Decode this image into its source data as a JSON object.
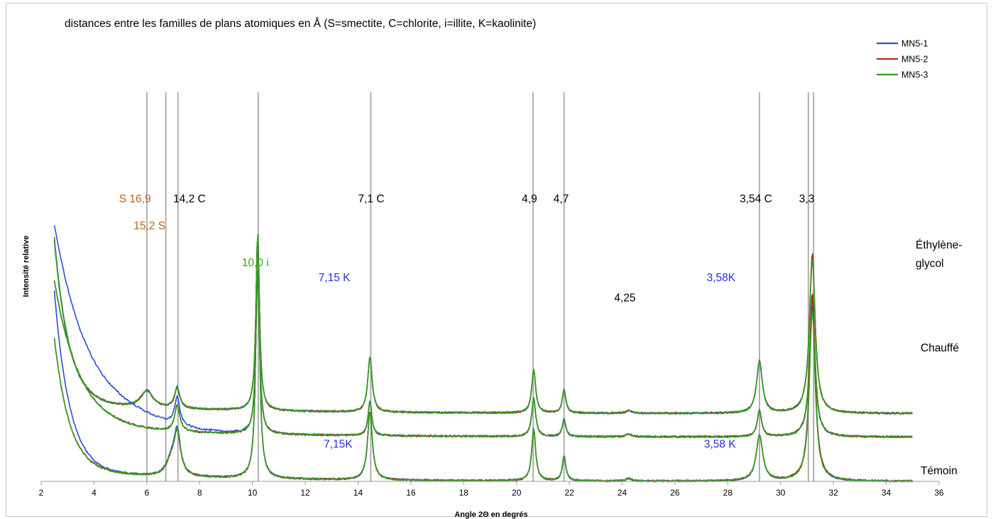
{
  "chart_data": {
    "type": "line",
    "title": "distances entre les familles de plans atomiques en Å (S=smectite, C=chlorite, i=illite, K=kaolinite)",
    "xlabel": "Angle 2Θ en degrés",
    "ylabel": "Intensité relative",
    "xlim": [
      2,
      36
    ],
    "x_ticks": [
      "2",
      "4",
      "6",
      "8",
      "10",
      "12",
      "14",
      "16",
      "18",
      "20",
      "22",
      "24",
      "26",
      "28",
      "30",
      "32",
      "34",
      "36"
    ],
    "legend": {
      "placement": "top-right",
      "entries": [
        {
          "name": "MN5-1",
          "color": "#2a4ed8"
        },
        {
          "name": "MN5-2",
          "color": "#b02a20"
        },
        {
          "name": "MN5-3",
          "color": "#2fa022"
        }
      ]
    },
    "groups": [
      {
        "label": "Éthylène-\nglycol",
        "label_lines": [
          "Éthylène-",
          "glycol"
        ],
        "baseline": 0.52,
        "dc": 1.27,
        "da": 1.75,
        "tau": 0.55
      },
      {
        "label": "Chauffé",
        "label_lines": [
          "Chauffé"
        ],
        "baseline": 0.34,
        "dc": 1.12,
        "da": 1.55,
        "tau": 0.95
      },
      {
        "label": "Témoin",
        "label_lines": [
          "Témoin"
        ],
        "baseline": 0.0,
        "dc": 1.02,
        "da": 1.38,
        "tau": 0.58
      }
    ],
    "peaks": [
      {
        "group": 0,
        "x": 6.0,
        "h": 0.13,
        "w": 0.28
      },
      {
        "group": 0,
        "x": 7.15,
        "h": 0.16,
        "w": 0.12
      },
      {
        "group": 0,
        "x": 10.2,
        "h": 1.35,
        "w": 0.08
      },
      {
        "group": 0,
        "x": 14.45,
        "h": 0.42,
        "w": 0.1
      },
      {
        "group": 0,
        "x": 20.65,
        "h": 0.33,
        "w": 0.09
      },
      {
        "group": 0,
        "x": 21.8,
        "h": 0.18,
        "w": 0.08
      },
      {
        "group": 0,
        "x": 24.25,
        "h": 0.02,
        "w": 0.12
      },
      {
        "group": 0,
        "x": 29.2,
        "h": 0.4,
        "w": 0.13
      },
      {
        "group": 0,
        "x": 31.2,
        "h": 1.2,
        "w": 0.13
      },
      {
        "group": 1,
        "x": 7.15,
        "h": 0.2,
        "w": 0.12
      },
      {
        "group": 1,
        "x": 10.2,
        "h": 1.27,
        "w": 0.08
      },
      {
        "group": 1,
        "x": 14.45,
        "h": 0.27,
        "w": 0.08
      },
      {
        "group": 1,
        "x": 20.65,
        "h": 0.29,
        "w": 0.09
      },
      {
        "group": 1,
        "x": 21.8,
        "h": 0.13,
        "w": 0.08
      },
      {
        "group": 1,
        "x": 24.25,
        "h": 0.02,
        "w": 0.12
      },
      {
        "group": 1,
        "x": 29.2,
        "h": 0.2,
        "w": 0.1
      },
      {
        "group": 1,
        "x": 31.2,
        "h": 1.05,
        "w": 0.12
      },
      {
        "group": 2,
        "x": 6.9,
        "h": 0.1,
        "w": 0.2
      },
      {
        "group": 2,
        "x": 7.15,
        "h": 0.33,
        "w": 0.15
      },
      {
        "group": 2,
        "x": 10.2,
        "h": 1.9,
        "w": 0.08
      },
      {
        "group": 2,
        "x": 14.45,
        "h": 0.52,
        "w": 0.11
      },
      {
        "group": 2,
        "x": 20.65,
        "h": 0.4,
        "w": 0.09
      },
      {
        "group": 2,
        "x": 21.8,
        "h": 0.19,
        "w": 0.08
      },
      {
        "group": 2,
        "x": 24.25,
        "h": 0.02,
        "w": 0.12
      },
      {
        "group": 2,
        "x": 29.2,
        "h": 0.35,
        "w": 0.15
      },
      {
        "group": 2,
        "x": 31.2,
        "h": 1.35,
        "w": 0.13
      }
    ],
    "reference_lines": [
      6.0,
      6.72,
      7.18,
      10.22,
      14.48,
      20.63,
      21.8,
      29.2,
      31.05,
      31.25
    ],
    "annotations": [
      {
        "text": "S 16,9",
        "x": 4.95,
        "y": 0.38,
        "color": "#c0601c"
      },
      {
        "text": "15,2 S",
        "x": 5.5,
        "y": 0.44,
        "color": "#c0601c"
      },
      {
        "text": "14,2 C",
        "x": 7.0,
        "y": 0.38,
        "color": "#000000"
      },
      {
        "text": "10,0 i",
        "x": 9.6,
        "y": 0.522,
        "color": "#3aa51e"
      },
      {
        "text": "7,1 C",
        "x": 14.0,
        "y": 0.38,
        "color": "#000000"
      },
      {
        "text": "4,9",
        "x": 20.2,
        "y": 0.38,
        "color": "#000000"
      },
      {
        "text": "4,7",
        "x": 21.4,
        "y": 0.38,
        "color": "#000000"
      },
      {
        "text": "3,54 C",
        "x": 28.45,
        "y": 0.38,
        "color": "#000000"
      },
      {
        "text": "3,3",
        "x": 30.7,
        "y": 0.38,
        "color": "#000000"
      },
      {
        "text": "7,15 K",
        "x": 12.5,
        "y": 0.555,
        "color": "#2a2ae0"
      },
      {
        "text": "3,58K",
        "x": 27.2,
        "y": 0.555,
        "color": "#2a2ae0"
      },
      {
        "text": "4,25",
        "x": 23.7,
        "y": 0.6,
        "color": "#000000"
      },
      {
        "text": "7,15K",
        "x": 12.7,
        "y": 0.925,
        "color": "#2a2ae0"
      },
      {
        "text": "3,58 K",
        "x": 27.1,
        "y": 0.925,
        "color": "#2a2ae0"
      }
    ],
    "grid": false
  }
}
